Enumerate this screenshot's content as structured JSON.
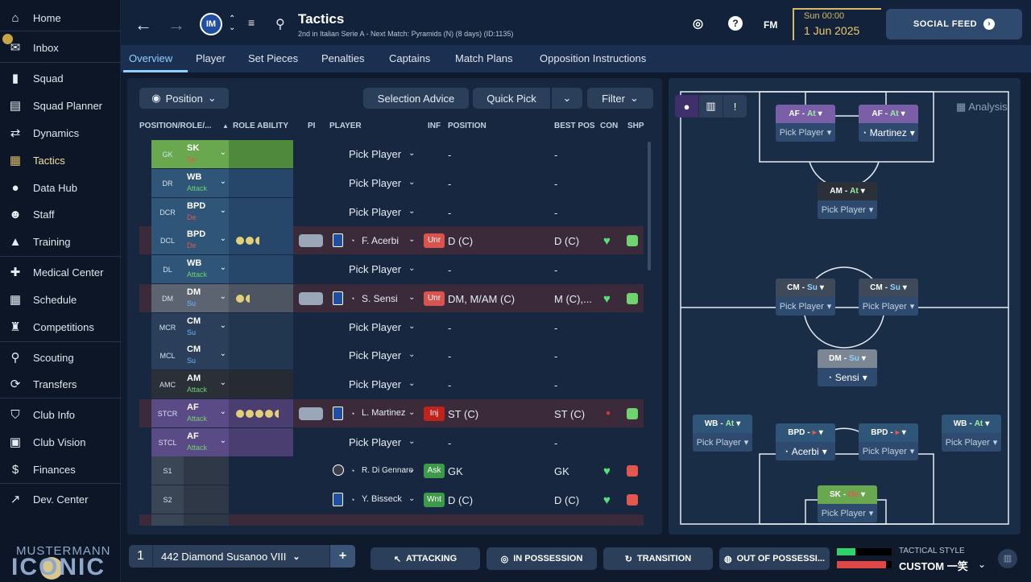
{
  "sidebar": {
    "items": [
      {
        "label": "Home",
        "icon": "home-icon",
        "glyph": "⌂"
      },
      {
        "label": "Inbox",
        "icon": "inbox-icon",
        "glyph": "✉"
      },
      {
        "label": "Squad",
        "icon": "shirt-icon",
        "glyph": "▮"
      },
      {
        "label": "Squad Planner",
        "icon": "clipboard-icon",
        "glyph": "▤"
      },
      {
        "label": "Dynamics",
        "icon": "people-arrows-icon",
        "glyph": "⇄"
      },
      {
        "label": "Tactics",
        "icon": "tactics-board-icon",
        "glyph": "▦"
      },
      {
        "label": "Data Hub",
        "icon": "data-hub-icon",
        "glyph": "●"
      },
      {
        "label": "Staff",
        "icon": "staff-icon",
        "glyph": "☻"
      },
      {
        "label": "Training",
        "icon": "training-cone-icon",
        "glyph": "▲"
      },
      {
        "label": "Medical Center",
        "icon": "medical-icon",
        "glyph": "✚"
      },
      {
        "label": "Schedule",
        "icon": "calendar-icon",
        "glyph": "▦"
      },
      {
        "label": "Competitions",
        "icon": "trophy-icon",
        "glyph": "♜"
      },
      {
        "label": "Scouting",
        "icon": "scouting-search-icon",
        "glyph": "⚲"
      },
      {
        "label": "Transfers",
        "icon": "transfers-icon",
        "glyph": "⟳"
      },
      {
        "label": "Club Info",
        "icon": "shield-icon",
        "glyph": "⛉"
      },
      {
        "label": "Club Vision",
        "icon": "briefcase-icon",
        "glyph": "▣"
      },
      {
        "label": "Finances",
        "icon": "finances-icon",
        "glyph": "$"
      },
      {
        "label": "Dev. Center",
        "icon": "dev-center-icon",
        "glyph": "↗"
      }
    ],
    "brand_line1": "MUSTERMANN",
    "brand_line2": "ICONIC"
  },
  "topbar": {
    "title": "Tactics",
    "subtitle": "2nd in Italian Serie A - Next Match: Pyramids (N) (8 days) (ID:1135)",
    "club_initials": "IM",
    "fm_label": "FM",
    "date_small": "Sun 00:00",
    "date_big": "1 Jun 2025",
    "social_feed": "SOCIAL FEED"
  },
  "tabs": [
    "Overview",
    "Player",
    "Set Pieces",
    "Penalties",
    "Captains",
    "Match Plans",
    "Opposition Instructions"
  ],
  "toolbar": {
    "position_btn": "Position",
    "selection_advice": "Selection Advice",
    "quick_pick": "Quick Pick",
    "filter": "Filter"
  },
  "table": {
    "headers": {
      "position_role": "POSITION/ROLE/...",
      "role_ability": "ROLE ABILITY",
      "pi": "PI",
      "player": "PLAYER",
      "inf": "INF",
      "position": "POSITION",
      "best_pos": "BEST POS",
      "con": "CON",
      "shp": "SHP"
    },
    "rows": [
      {
        "pos": "GK",
        "role": "SK",
        "duty": "De",
        "player": "Pick Player",
        "position": "-",
        "best": "-"
      },
      {
        "pos": "DR",
        "role": "WB",
        "duty": "Attack",
        "player": "Pick Player",
        "position": "-",
        "best": "-"
      },
      {
        "pos": "DCR",
        "role": "BPD",
        "duty": "De",
        "player": "Pick Player",
        "position": "-",
        "best": "-"
      },
      {
        "pos": "DCL",
        "role": "BPD",
        "duty": "De",
        "player": "F. Acerbi",
        "inf": "Unr",
        "position": "D (C)",
        "best": "D (C)"
      },
      {
        "pos": "DL",
        "role": "WB",
        "duty": "Attack",
        "player": "Pick Player",
        "position": "-",
        "best": "-"
      },
      {
        "pos": "DM",
        "role": "DM",
        "duty": "Su",
        "player": "S. Sensi",
        "inf": "Unr",
        "position": "DM, M/AM (C)",
        "best": "M (C),..."
      },
      {
        "pos": "MCR",
        "role": "CM",
        "duty": "Su",
        "player": "Pick Player",
        "position": "-",
        "best": "-"
      },
      {
        "pos": "MCL",
        "role": "CM",
        "duty": "Su",
        "player": "Pick Player",
        "position": "-",
        "best": "-"
      },
      {
        "pos": "AMC",
        "role": "AM",
        "duty": "Attack",
        "player": "Pick Player",
        "position": "-",
        "best": "-"
      },
      {
        "pos": "STCR",
        "role": "AF",
        "duty": "Attack",
        "player": "L. Martinez",
        "inf": "Inj",
        "position": "ST (C)",
        "best": "ST (C)"
      },
      {
        "pos": "STCL",
        "role": "AF",
        "duty": "Attack",
        "player": "Pick Player",
        "position": "-",
        "best": "-"
      },
      {
        "pos": "S1",
        "role": "",
        "duty": "",
        "player": "R. Di Gennaro",
        "inf": "Ask",
        "position": "GK",
        "best": "GK"
      },
      {
        "pos": "S2",
        "role": "",
        "duty": "",
        "player": "Y. Bisseck",
        "inf": "Wnt",
        "position": "D (C)",
        "best": "D (C)"
      }
    ]
  },
  "pitch": {
    "analysis": "Analysis",
    "cards": {
      "af1_role": "AF",
      "af1_duty": "At",
      "af1_player": "Pick Player",
      "af2_role": "AF",
      "af2_duty": "At",
      "af2_player": "Martinez",
      "am_role": "AM",
      "am_duty": "At",
      "am_player": "Pick Player",
      "cm1_role": "CM",
      "cm1_duty": "Su",
      "cm1_player": "Pick Player",
      "cm2_role": "CM",
      "cm2_duty": "Su",
      "cm2_player": "Pick Player",
      "dm_role": "DM",
      "dm_duty": "Su",
      "dm_player": "Sensi",
      "wbr_role": "WB",
      "wbr_duty": "At",
      "wbr_player": "Pick Player",
      "bpd1_role": "BPD",
      "bpd1_player": "Acerbi",
      "bpd2_role": "BPD",
      "bpd2_player": "Pick Player",
      "wbl_role": "WB",
      "wbl_duty": "At",
      "wbl_player": "Pick Player",
      "sk_role": "SK",
      "sk_duty": "De",
      "sk_player": "Pick Player"
    }
  },
  "bottom": {
    "tactic_slot": "1",
    "tactic_name": "442 Diamond Susanoo VIII",
    "add": "+",
    "attacking": "ATTACKING",
    "in_possession": "IN POSSESSION",
    "transition": "TRANSITION",
    "out_of_possession": "OUT OF POSSESSI...",
    "tactical_style_label": "TACTICAL STYLE",
    "tactical_style_value": "CUSTOM 一笑"
  },
  "colors": {
    "accent_gold": "#d7b96a",
    "highlight_blue": "#8ed0ff",
    "attack_green": "#6fd36f",
    "defend_red": "#e05a4f",
    "support_blue": "#6ab8ff"
  }
}
